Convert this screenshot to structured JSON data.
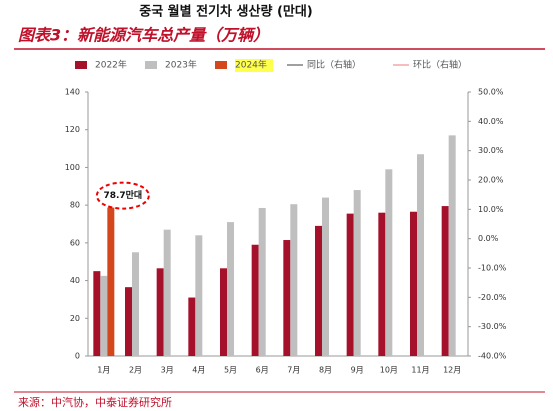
{
  "korean_title": "중국 월별 전기차 생산량 (만대)",
  "chart_data": {
    "type": "bar",
    "title": "图表3：新能源汽车总产量（万辆）",
    "categories": [
      "1月",
      "2月",
      "3月",
      "4月",
      "5月",
      "6月",
      "7月",
      "8月",
      "9月",
      "10月",
      "11月",
      "12月"
    ],
    "series": [
      {
        "name": "2022年",
        "color": "#a5102a",
        "values": [
          45,
          36.5,
          46.5,
          31,
          46.5,
          59,
          61.5,
          69,
          75.5,
          76,
          76.5,
          79.5
        ]
      },
      {
        "name": "2023年",
        "color": "#bfbfbf",
        "values": [
          42.5,
          55,
          67,
          64,
          71,
          78.5,
          80.5,
          84,
          88,
          99,
          107,
          117
        ]
      },
      {
        "name": "2024年",
        "color": "#d4471c",
        "values": [
          78.7,
          null,
          null,
          null,
          null,
          null,
          null,
          null,
          null,
          null,
          null,
          null
        ],
        "value_labels": [
          "78.7만대",
          null,
          null,
          null,
          null,
          null,
          null,
          null,
          null,
          null,
          null,
          null
        ]
      },
      {
        "name": "同比（右轴）",
        "color": "#808080",
        "type": "line",
        "axis": "y2",
        "values": [
          null,
          null,
          null,
          null,
          null,
          null,
          null,
          null,
          null,
          null,
          null,
          null
        ]
      },
      {
        "name": "环比（右轴）",
        "color": "#f2a7a7",
        "type": "line",
        "axis": "y2",
        "values": [
          null,
          null,
          null,
          null,
          null,
          null,
          null,
          null,
          null,
          null,
          null,
          null
        ]
      }
    ],
    "ylim": [
      0,
      140
    ],
    "yticks": [
      0,
      20,
      40,
      60,
      80,
      100,
      120,
      140
    ],
    "y2lim": [
      -40,
      50
    ],
    "y2ticks": [
      {
        "value": -40,
        "label": "-40.0%"
      },
      {
        "value": -30,
        "label": "-30.0%"
      },
      {
        "value": -20,
        "label": "-20.0%"
      },
      {
        "value": -10,
        "label": "-10.0%"
      },
      {
        "value": 0,
        "label": "0.0%"
      },
      {
        "value": 10,
        "label": "10.0%"
      },
      {
        "value": 20,
        "label": "20.0%"
      },
      {
        "value": 30,
        "label": "30.0%"
      },
      {
        "value": 40,
        "label": "40.0%"
      },
      {
        "value": 50,
        "label": "50.0%"
      }
    ],
    "source": "来源：中汽协，中泰证券研究所"
  }
}
